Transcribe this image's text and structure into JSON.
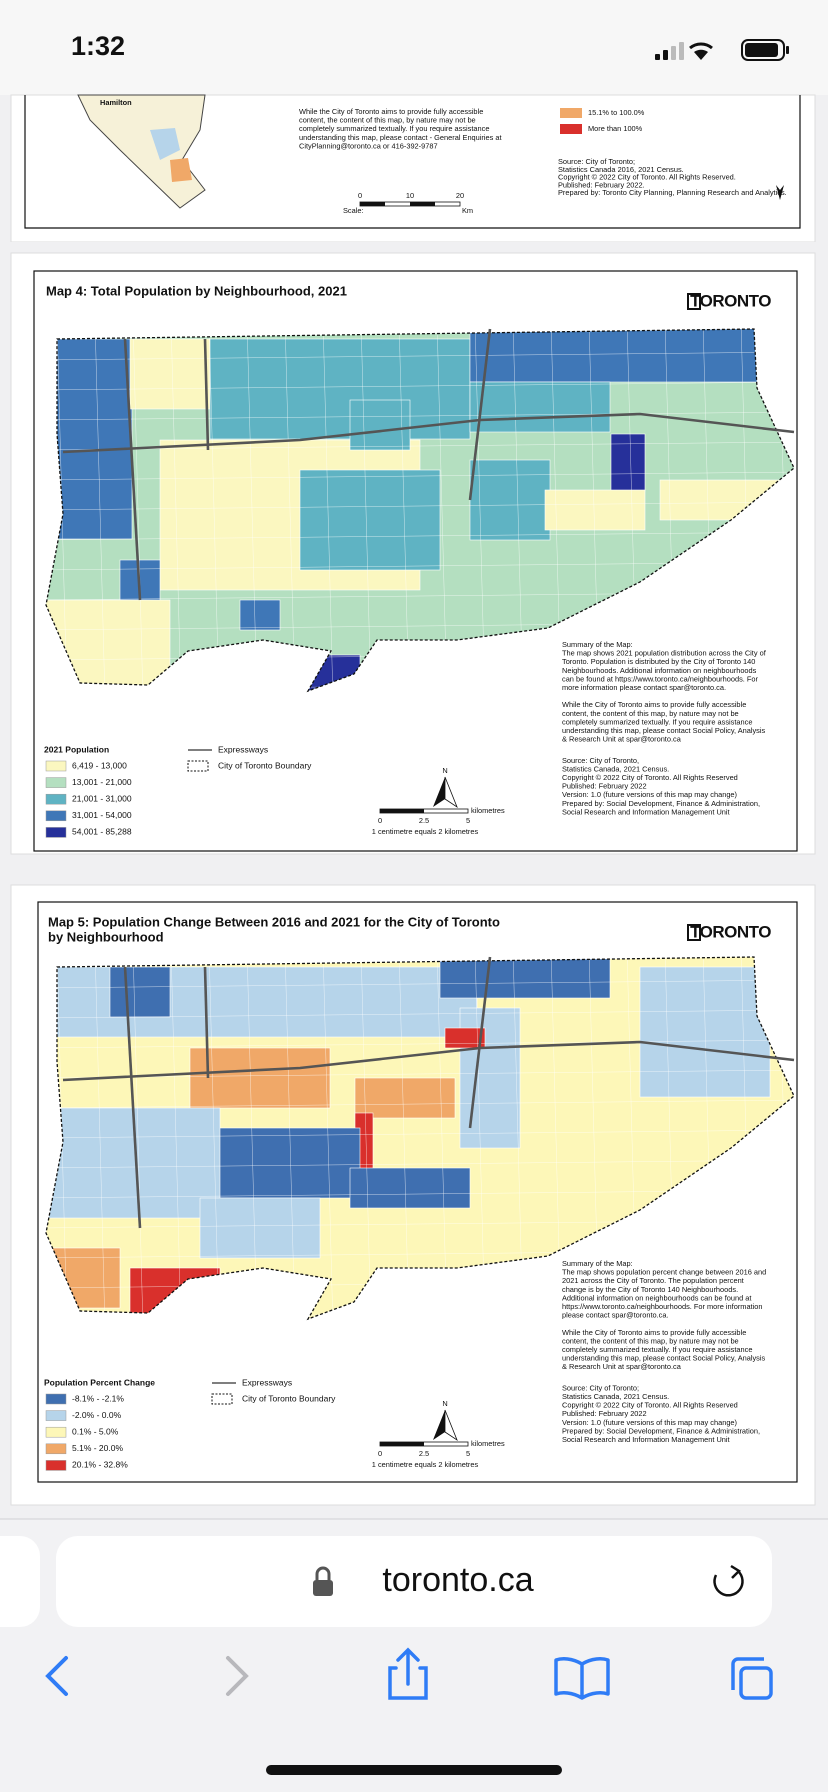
{
  "status": {
    "time": "1:32"
  },
  "top_panel": {
    "inset_label": "Hamilton",
    "disclaimer": [
      "While the City of Toronto aims to provide fully accessible",
      "content, the content of this map, by nature may not be",
      "completely summarized textually. If you require assistance",
      "understanding this map, please contact - General Enquiries at",
      "CityPlanning@toronto.ca or 416-392-9787"
    ],
    "legend": [
      {
        "label": "15.1% to 100.0%",
        "color": "#f0a868"
      },
      {
        "label": "More than 100%",
        "color": "#d9302c"
      }
    ],
    "source": [
      "Source: City of Toronto;",
      "Statistics Canada 2016, 2021 Census.",
      "Copyright © 2022 City of Toronto. All Rights Reserved.",
      "Published: February 2022.",
      "Prepared by: Toronto City Planning, Planning Research and Analytics."
    ],
    "scale": {
      "label": "Scale:",
      "ticks": [
        "0",
        "10",
        "20"
      ],
      "unit": "Km"
    }
  },
  "map4": {
    "title": [
      "Map 4: Total Population by Neighbourhood, 2021"
    ],
    "logo": "TORONTO",
    "legend_title": "2021 Population",
    "legend": [
      {
        "label": "6,419 - 13,000",
        "color": "#fbf7c0"
      },
      {
        "label": "13,001 - 21,000",
        "color": "#b4dfc0"
      },
      {
        "label": "21,001 - 31,000",
        "color": "#5fb3c3"
      },
      {
        "label": "31,001 - 54,000",
        "color": "#3f77b7"
      },
      {
        "label": "54,001 - 85,288",
        "color": "#26309a"
      }
    ],
    "expressways": "Expressways",
    "boundary": "City of Toronto Boundary",
    "summary": [
      "Summary of the Map:",
      "The map shows 2021 population distribution across the City of",
      "Toronto. Population is distributed by the City of Toronto 140",
      "Neighbourhoods. Additional information on neighbourhoods",
      "can be found at https://www.toronto.ca/neighbourhoods. For",
      "more information please contact spar@toronto.ca."
    ],
    "accessibility": [
      "While the City of Toronto aims to provide fully accessible",
      "content, the content of this map, by nature may not be",
      "completely summarized textually. If you require assistance",
      "understanding this map, please contact Social Policy, Analysis",
      "& Research Unit at spar@toronto.ca"
    ],
    "source": [
      "Source: City of Toronto,",
      "Statistics Canada, 2021 Census.",
      "Copyright © 2022 City of Toronto. All Rights Reserved",
      "Published: February 2022",
      "Version: 1.0 (future versions of this map may change)",
      "Prepared by: Social Development, Finance & Administration,",
      "Social Research and Information Management Unit"
    ],
    "north": "N",
    "scale": {
      "ticks": [
        "0",
        "2.5",
        "5"
      ],
      "unit": "kilometres",
      "note": "1 centimetre equals 2 kilometres"
    }
  },
  "map5": {
    "title": [
      "Map 5: Population Change Between 2016 and 2021 for the City of Toronto",
      "by Neighbourhood"
    ],
    "logo": "TORONTO",
    "legend_title": "Population Percent Change",
    "legend": [
      {
        "label": "-8.1% - -2.1%",
        "color": "#3f6fb0"
      },
      {
        "label": "-2.0% - 0.0%",
        "color": "#b6d4ea"
      },
      {
        "label": "0.1% - 5.0%",
        "color": "#fdf7b8"
      },
      {
        "label": "5.1% - 20.0%",
        "color": "#f0a868"
      },
      {
        "label": "20.1% - 32.8%",
        "color": "#d9302c"
      }
    ],
    "expressways": "Expressways",
    "boundary": "City of Toronto Boundary",
    "summary": [
      "Summary of the Map:",
      "The map shows population percent change between 2016 and",
      "2021 across the City of Toronto. The population percent",
      "change is by the City of Toronto 140 Neighbourhoods.",
      "Additional information on neighbourhoods can be found at",
      "https://www.toronto.ca/neighbourhoods. For more information",
      "please contact spar@toronto.ca."
    ],
    "accessibility": [
      "While the City of Toronto aims to provide fully accessible",
      "content, the content of this map, by nature may not be",
      "completely summarized textually. If you require assistance",
      "understanding this map, please contact Social Policy, Analysis",
      "& Research Unit at spar@toronto.ca"
    ],
    "source": [
      "Source: City of Toronto;",
      "Statistics Canada, 2021 Census.",
      "Copyright © 2022 City of Toronto. All Rights Reserved",
      "Published: February 2022",
      "Version: 1.0 (future versions of this map may change)",
      "Prepared by: Social Development, Finance & Administration,",
      "Social Research and Information Management Unit"
    ],
    "north": "N",
    "scale": {
      "ticks": [
        "0",
        "2.5",
        "5"
      ],
      "unit": "kilometres",
      "note": "1 centimetre equals 2 kilometres"
    }
  },
  "browser": {
    "url": "toronto.ca"
  }
}
